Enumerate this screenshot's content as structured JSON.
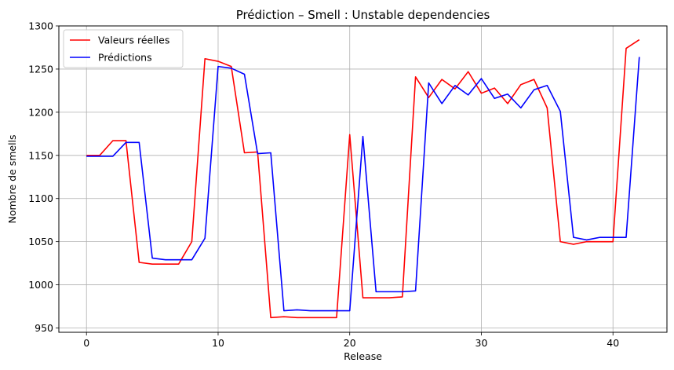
{
  "chart_data": {
    "type": "line",
    "title": "Prédiction – Smell : Unstable dependencies",
    "xlabel": "Release",
    "ylabel": "Nombre de smells",
    "xlim": [
      -2.1,
      44.1
    ],
    "ylim": [
      945,
      1300
    ],
    "x_ticks": [
      0,
      10,
      20,
      30,
      40
    ],
    "y_ticks": [
      950,
      1000,
      1050,
      1100,
      1150,
      1200,
      1250,
      1300
    ],
    "grid": true,
    "legend_position": "upper-left",
    "series": [
      {
        "name": "Valeurs réelles",
        "color": "#ff0000",
        "x": [
          0,
          1,
          2,
          3,
          4,
          5,
          6,
          7,
          8,
          9,
          10,
          11,
          12,
          13,
          14,
          15,
          16,
          17,
          18,
          19,
          20,
          21,
          22,
          23,
          24,
          25,
          26,
          27,
          28,
          29,
          30,
          31,
          32,
          33,
          34,
          35,
          36,
          37,
          38,
          39,
          40,
          41,
          42
        ],
        "values": [
          1150,
          1150,
          1167,
          1167,
          1026,
          1024,
          1024,
          1024,
          1050,
          1262,
          1259,
          1253,
          1153,
          1154,
          962,
          963,
          962,
          962,
          962,
          962,
          1174,
          985,
          985,
          985,
          986,
          1241,
          1217,
          1238,
          1227,
          1247,
          1222,
          1228,
          1210,
          1232,
          1238,
          1205,
          1050,
          1047,
          1050,
          1050,
          1050,
          1274,
          1284
        ]
      },
      {
        "name": "Prédictions",
        "color": "#0000ff",
        "x": [
          0,
          1,
          2,
          3,
          4,
          5,
          6,
          7,
          8,
          9,
          10,
          11,
          12,
          13,
          14,
          15,
          16,
          17,
          18,
          19,
          20,
          21,
          22,
          23,
          24,
          25,
          26,
          27,
          28,
          29,
          30,
          31,
          32,
          33,
          34,
          35,
          36,
          37,
          38,
          39,
          40,
          41,
          42
        ],
        "values": [
          1149,
          1149,
          1149,
          1165,
          1165,
          1031,
          1029,
          1029,
          1029,
          1054,
          1253,
          1251,
          1244,
          1152,
          1153,
          970,
          971,
          970,
          970,
          970,
          970,
          1172,
          992,
          992,
          992,
          993,
          1234,
          1210,
          1231,
          1220,
          1239,
          1216,
          1221,
          1205,
          1226,
          1231,
          1201,
          1055,
          1052,
          1055,
          1055,
          1055,
          1264
        ]
      }
    ]
  }
}
